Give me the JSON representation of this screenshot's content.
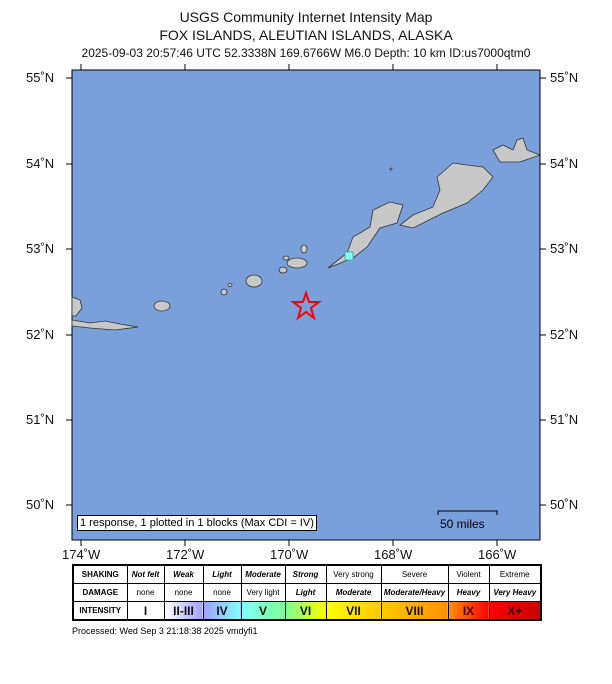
{
  "header": {
    "title": "USGS Community Internet Intensity Map",
    "region": "FOX ISLANDS, ALEUTIAN ISLANDS, ALASKA",
    "event": "2025-09-03 20:57:46 UTC 52.3338N 169.6766W M6.0 Depth: 10 km ID:us7000qtm0"
  },
  "map": {
    "ocean_color": "#7aa0dc",
    "land_color": "#c8c8c8",
    "epicenter": {
      "lat": 52.3338,
      "lon": -169.6766,
      "icon": "red-star-icon",
      "color": "#ff0000"
    },
    "cdi_block": {
      "lat": 52.92,
      "lon": -168.85,
      "color": "#80ffff",
      "cdi": "IV"
    },
    "lat_labels": [
      "55˚N",
      "54˚N",
      "53˚N",
      "52˚N",
      "51˚N",
      "50˚N"
    ],
    "lon_labels": [
      "174˚W",
      "172˚W",
      "170˚W",
      "168˚W",
      "166˚W"
    ],
    "summary": "1 response, 1 plotted in 1 blocks (Max CDI = IV)",
    "scale": "50 miles"
  },
  "legend": {
    "shaking_label": "SHAKING",
    "damage_label": "DAMAGE",
    "intensity_label": "INTENSITY",
    "columns": [
      {
        "shaking": "Not felt",
        "damage": "none",
        "intensity": "I",
        "color": "#ffffff"
      },
      {
        "shaking": "Weak",
        "damage": "none",
        "intensity": "II-III",
        "color": "#a0a0ff"
      },
      {
        "shaking": "Light",
        "damage": "none",
        "intensity": "IV",
        "color": "#80ffff"
      },
      {
        "shaking": "Moderate",
        "damage": "Very light",
        "intensity": "V",
        "color": "#7aff93"
      },
      {
        "shaking": "Strong",
        "damage": "Light",
        "intensity": "VI",
        "color": "#ffff00"
      },
      {
        "shaking": "Very strong",
        "damage": "Moderate",
        "intensity": "VII",
        "color": "#ffc800"
      },
      {
        "shaking": "Severe",
        "damage": "Moderate/Heavy",
        "intensity": "VIII",
        "color": "#ff9100"
      },
      {
        "shaking": "Violent",
        "damage": "Heavy",
        "intensity": "IX",
        "color": "#ff0000"
      },
      {
        "shaking": "Extreme",
        "damage": "Very Heavy",
        "intensity": "X+",
        "color": "#c80000"
      }
    ]
  },
  "footer": {
    "processed": "Processed: Wed Sep  3 21:18:38 2025 vmdyfi1"
  }
}
